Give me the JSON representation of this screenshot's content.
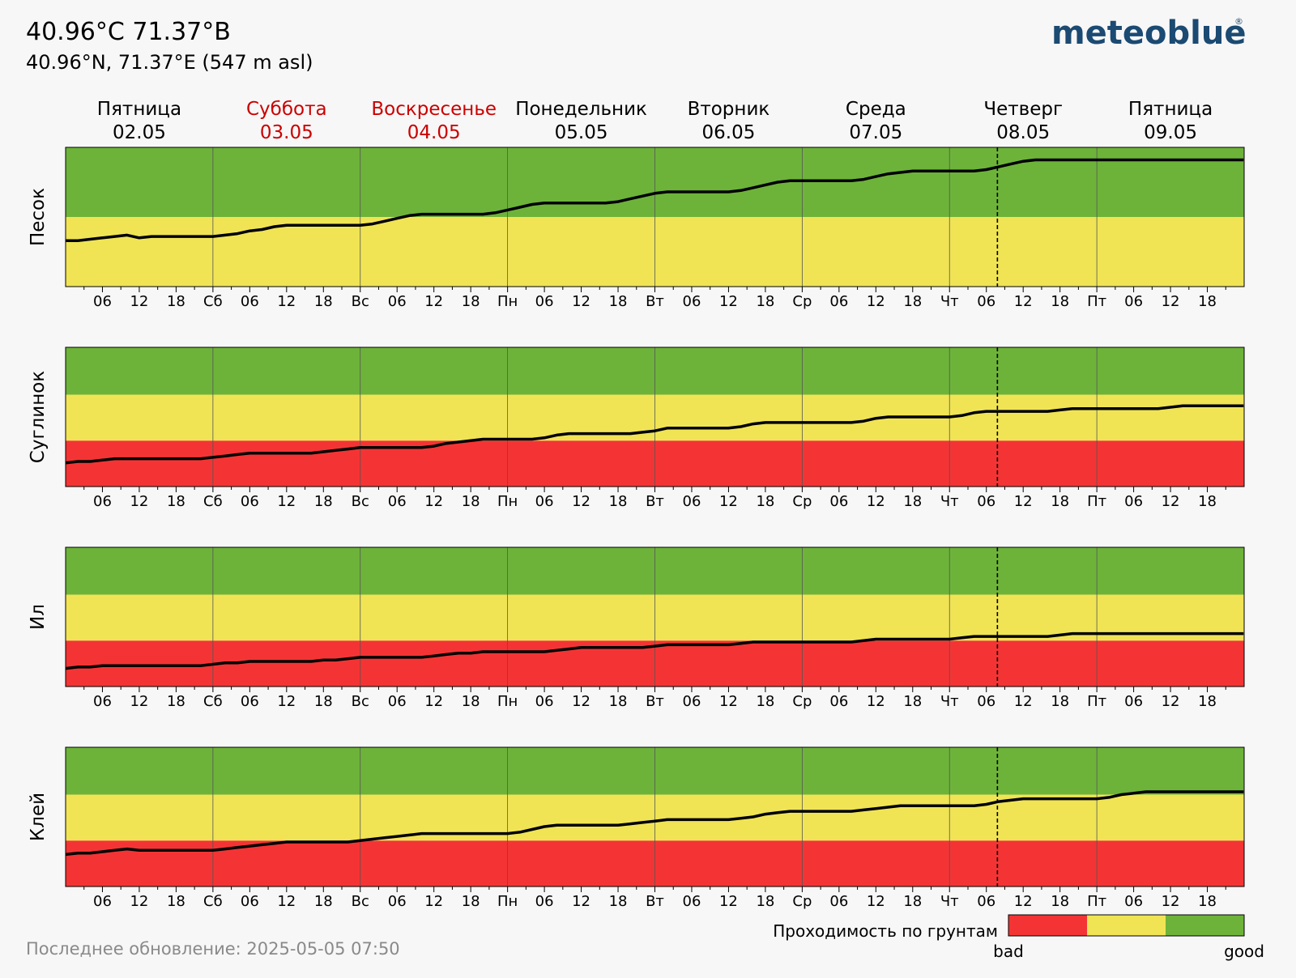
{
  "header": {
    "title": "40.96°C 71.37°B",
    "subtitle": "40.96°N, 71.37°E (547 m asl)",
    "logo": "meteoblue",
    "logo_mark": "®"
  },
  "colors": {
    "bad": "#f43434",
    "medium": "#f0e455",
    "good": "#6db33a",
    "weekend": "#cc0000",
    "line": "#000000",
    "logo": "#1b4a72"
  },
  "days": [
    {
      "name": "Пятница",
      "date": "02.05",
      "weekend": false,
      "abbr": ""
    },
    {
      "name": "Суббота",
      "date": "03.05",
      "weekend": true,
      "abbr": "Сб"
    },
    {
      "name": "Воскресенье",
      "date": "04.05",
      "weekend": true,
      "abbr": "Вс"
    },
    {
      "name": "Понедельник",
      "date": "05.05",
      "weekend": false,
      "abbr": "Пн"
    },
    {
      "name": "Вторник",
      "date": "06.05",
      "weekend": false,
      "abbr": "Вт"
    },
    {
      "name": "Среда",
      "date": "07.05",
      "weekend": false,
      "abbr": "Ср"
    },
    {
      "name": "Четверг",
      "date": "08.05",
      "weekend": false,
      "abbr": "Чт"
    },
    {
      "name": "Пятница",
      "date": "09.05",
      "weekend": false,
      "abbr": "Пт"
    }
  ],
  "hour_labels": [
    "06",
    "12",
    "18"
  ],
  "footer": {
    "last_update": "Последнее обновление: 2025-05-05 07:50",
    "legend_title": "Проходимость по грунтам",
    "legend_bad": "bad",
    "legend_good": "good"
  },
  "chart_data": [
    {
      "type": "line",
      "title": "Песок",
      "x_unit": "hours since 2025-05-02 00:00",
      "ylim": [
        0,
        100
      ],
      "bands": [
        {
          "class": "medium",
          "from": 0,
          "to": 50
        },
        {
          "class": "good",
          "from": 50,
          "to": 100
        }
      ],
      "now_hour": 151.8,
      "x": [
        0,
        2,
        4,
        6,
        8,
        10,
        12,
        14,
        16,
        18,
        20,
        22,
        24,
        26,
        28,
        30,
        32,
        34,
        36,
        38,
        40,
        42,
        44,
        46,
        48,
        50,
        52,
        54,
        56,
        58,
        60,
        62,
        64,
        66,
        68,
        70,
        72,
        74,
        76,
        78,
        80,
        82,
        84,
        86,
        88,
        90,
        92,
        94,
        96,
        98,
        100,
        102,
        104,
        106,
        108,
        110,
        112,
        114,
        116,
        118,
        120,
        122,
        124,
        126,
        128,
        130,
        132,
        134,
        136,
        138,
        140,
        142,
        144,
        146,
        148,
        150,
        152,
        154,
        156,
        158,
        160,
        162,
        164,
        166,
        168,
        170,
        172,
        174,
        176,
        178,
        180,
        182,
        184,
        186,
        188,
        190,
        191.9
      ],
      "values": [
        33,
        33,
        34,
        35,
        36,
        37,
        35,
        36,
        36,
        36,
        36,
        36,
        36,
        37,
        38,
        40,
        41,
        43,
        44,
        44,
        44,
        44,
        44,
        44,
        44,
        45,
        47,
        49,
        51,
        52,
        52,
        52,
        52,
        52,
        52,
        53,
        55,
        57,
        59,
        60,
        60,
        60,
        60,
        60,
        60,
        61,
        63,
        65,
        67,
        68,
        68,
        68,
        68,
        68,
        68,
        69,
        71,
        73,
        75,
        76,
        76,
        76,
        76,
        76,
        76,
        77,
        79,
        81,
        82,
        83,
        83,
        83,
        83,
        83,
        83,
        84,
        86,
        88,
        90,
        91,
        91,
        91,
        91,
        91,
        91,
        91,
        91,
        91,
        91,
        91,
        91,
        91,
        91,
        91,
        91,
        91,
        91
      ]
    },
    {
      "type": "line",
      "title": "Суглинок",
      "x_unit": "hours since 2025-05-02 00:00",
      "ylim": [
        0,
        100
      ],
      "bands": [
        {
          "class": "bad",
          "from": 0,
          "to": 33
        },
        {
          "class": "medium",
          "from": 33,
          "to": 66
        },
        {
          "class": "good",
          "from": 66,
          "to": 100
        }
      ],
      "now_hour": 151.8,
      "x": [
        0,
        2,
        4,
        6,
        8,
        10,
        12,
        14,
        16,
        18,
        20,
        22,
        24,
        26,
        28,
        30,
        32,
        34,
        36,
        38,
        40,
        42,
        44,
        46,
        48,
        50,
        52,
        54,
        56,
        58,
        60,
        62,
        64,
        66,
        68,
        70,
        72,
        74,
        76,
        78,
        80,
        82,
        84,
        86,
        88,
        90,
        92,
        94,
        96,
        98,
        100,
        102,
        104,
        106,
        108,
        110,
        112,
        114,
        116,
        118,
        120,
        122,
        124,
        126,
        128,
        130,
        132,
        134,
        136,
        138,
        140,
        142,
        144,
        146,
        148,
        150,
        152,
        154,
        156,
        158,
        160,
        162,
        164,
        166,
        168,
        170,
        172,
        174,
        176,
        178,
        180,
        182,
        184,
        186,
        188,
        190,
        191.9
      ],
      "values": [
        17,
        18,
        18,
        19,
        20,
        20,
        20,
        20,
        20,
        20,
        20,
        20,
        21,
        22,
        23,
        24,
        24,
        24,
        24,
        24,
        24,
        25,
        26,
        27,
        28,
        28,
        28,
        28,
        28,
        28,
        29,
        31,
        32,
        33,
        34,
        34,
        34,
        34,
        34,
        35,
        37,
        38,
        38,
        38,
        38,
        38,
        38,
        39,
        40,
        42,
        42,
        42,
        42,
        42,
        42,
        43,
        45,
        46,
        46,
        46,
        46,
        46,
        46,
        46,
        46,
        47,
        49,
        50,
        50,
        50,
        50,
        50,
        50,
        51,
        53,
        54,
        54,
        54,
        54,
        54,
        54,
        55,
        56,
        56,
        56,
        56,
        56,
        56,
        56,
        56,
        57,
        58,
        58,
        58,
        58,
        58,
        58
      ]
    },
    {
      "type": "line",
      "title": "Ил",
      "x_unit": "hours since 2025-05-02 00:00",
      "ylim": [
        0,
        100
      ],
      "bands": [
        {
          "class": "bad",
          "from": 0,
          "to": 33
        },
        {
          "class": "medium",
          "from": 33,
          "to": 66
        },
        {
          "class": "good",
          "from": 66,
          "to": 100
        }
      ],
      "now_hour": 151.8,
      "x": [
        0,
        2,
        4,
        6,
        8,
        10,
        12,
        14,
        16,
        18,
        20,
        22,
        24,
        26,
        28,
        30,
        32,
        34,
        36,
        38,
        40,
        42,
        44,
        46,
        48,
        50,
        52,
        54,
        56,
        58,
        60,
        62,
        64,
        66,
        68,
        70,
        72,
        74,
        76,
        78,
        80,
        82,
        84,
        86,
        88,
        90,
        92,
        94,
        96,
        98,
        100,
        102,
        104,
        106,
        108,
        110,
        112,
        114,
        116,
        118,
        120,
        122,
        124,
        126,
        128,
        130,
        132,
        134,
        136,
        138,
        140,
        142,
        144,
        146,
        148,
        150,
        152,
        154,
        156,
        158,
        160,
        162,
        164,
        166,
        168,
        170,
        172,
        174,
        176,
        178,
        180,
        182,
        184,
        186,
        188,
        190,
        191.9
      ],
      "values": [
        13,
        14,
        14,
        15,
        15,
        15,
        15,
        15,
        15,
        15,
        15,
        15,
        16,
        17,
        17,
        18,
        18,
        18,
        18,
        18,
        18,
        19,
        19,
        20,
        21,
        21,
        21,
        21,
        21,
        21,
        22,
        23,
        24,
        24,
        25,
        25,
        25,
        25,
        25,
        25,
        26,
        27,
        28,
        28,
        28,
        28,
        28,
        28,
        29,
        30,
        30,
        30,
        30,
        30,
        30,
        31,
        32,
        32,
        32,
        32,
        32,
        32,
        32,
        32,
        32,
        33,
        34,
        34,
        34,
        34,
        34,
        34,
        34,
        35,
        36,
        36,
        36,
        36,
        36,
        36,
        36,
        37,
        38,
        38,
        38,
        38,
        38,
        38,
        38,
        38,
        38,
        38,
        38,
        38,
        38,
        38,
        38
      ]
    },
    {
      "type": "line",
      "title": "Клей",
      "x_unit": "hours since 2025-05-02 00:00",
      "ylim": [
        0,
        100
      ],
      "bands": [
        {
          "class": "bad",
          "from": 0,
          "to": 33
        },
        {
          "class": "medium",
          "from": 33,
          "to": 66
        },
        {
          "class": "good",
          "from": 66,
          "to": 100
        }
      ],
      "now_hour": 151.8,
      "x": [
        0,
        2,
        4,
        6,
        8,
        10,
        12,
        14,
        16,
        18,
        20,
        22,
        24,
        26,
        28,
        30,
        32,
        34,
        36,
        38,
        40,
        42,
        44,
        46,
        48,
        50,
        52,
        54,
        56,
        58,
        60,
        62,
        64,
        66,
        68,
        70,
        72,
        74,
        76,
        78,
        80,
        82,
        84,
        86,
        88,
        90,
        92,
        94,
        96,
        98,
        100,
        102,
        104,
        106,
        108,
        110,
        112,
        114,
        116,
        118,
        120,
        122,
        124,
        126,
        128,
        130,
        132,
        134,
        136,
        138,
        140,
        142,
        144,
        146,
        148,
        150,
        152,
        154,
        156,
        158,
        160,
        162,
        164,
        166,
        168,
        170,
        172,
        174,
        176,
        178,
        180,
        182,
        184,
        186,
        188,
        190,
        191.9
      ],
      "values": [
        23,
        24,
        24,
        25,
        26,
        27,
        26,
        26,
        26,
        26,
        26,
        26,
        26,
        27,
        28,
        29,
        30,
        31,
        32,
        32,
        32,
        32,
        32,
        32,
        33,
        34,
        35,
        36,
        37,
        38,
        38,
        38,
        38,
        38,
        38,
        38,
        38,
        39,
        41,
        43,
        44,
        44,
        44,
        44,
        44,
        44,
        45,
        46,
        47,
        48,
        48,
        48,
        48,
        48,
        48,
        49,
        50,
        52,
        53,
        54,
        54,
        54,
        54,
        54,
        54,
        55,
        56,
        57,
        58,
        58,
        58,
        58,
        58,
        58,
        58,
        59,
        61,
        62,
        63,
        63,
        63,
        63,
        63,
        63,
        63,
        64,
        66,
        67,
        68,
        68,
        68,
        68,
        68,
        68,
        68,
        68,
        68
      ]
    }
  ]
}
